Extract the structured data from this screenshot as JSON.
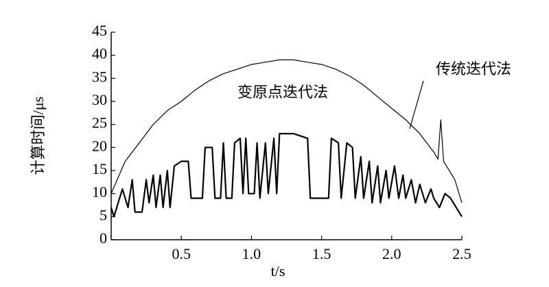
{
  "chart_data": {
    "type": "line",
    "xlabel": "t/s",
    "ylabel": "计算时间/μs",
    "xlim": [
      0,
      2.5
    ],
    "ylim": [
      0,
      45
    ],
    "xticks": [
      0.5,
      {
        "value": 1,
        "label": "1.0"
      },
      1.5,
      {
        "value": 2,
        "label": "2.0"
      },
      2.5
    ],
    "yticks": [
      0,
      5,
      10,
      15,
      20,
      25,
      30,
      35,
      40,
      45
    ],
    "series": [
      {
        "name": "传统迭代法",
        "color": "#000000",
        "width": 1.2,
        "x": [
          0,
          0.1,
          0.2,
          0.3,
          0.4,
          0.5,
          0.6,
          0.7,
          0.8,
          0.9,
          1.0,
          1.1,
          1.2,
          1.3,
          1.4,
          1.5,
          1.6,
          1.7,
          1.8,
          1.9,
          2.0,
          2.1,
          2.2,
          2.3,
          2.33,
          2.35,
          2.37,
          2.4,
          2.45,
          2.5
        ],
        "values": [
          10,
          17,
          21,
          25,
          28,
          30,
          32.5,
          34.5,
          36,
          37,
          38,
          38.5,
          39,
          39,
          38.5,
          38,
          37,
          35.5,
          33.5,
          31,
          28.5,
          26,
          23,
          19,
          17.5,
          26,
          17,
          15.5,
          13,
          8
        ]
      },
      {
        "name": "变原点迭代法",
        "color": "#000000",
        "width": 2.2,
        "x": [
          0,
          0.02,
          0.05,
          0.08,
          0.1,
          0.12,
          0.15,
          0.17,
          0.22,
          0.25,
          0.27,
          0.3,
          0.32,
          0.35,
          0.37,
          0.4,
          0.42,
          0.45,
          0.5,
          0.55,
          0.57,
          0.65,
          0.67,
          0.72,
          0.74,
          0.78,
          0.8,
          0.82,
          0.86,
          0.88,
          0.92,
          0.94,
          0.96,
          0.98,
          1.02,
          1.04,
          1.06,
          1.1,
          1.12,
          1.16,
          1.18,
          1.2,
          1.3,
          1.4,
          1.42,
          1.5,
          1.55,
          1.57,
          1.62,
          1.64,
          1.68,
          1.72,
          1.74,
          1.78,
          1.8,
          1.84,
          1.86,
          1.9,
          1.92,
          1.96,
          1.98,
          2.02,
          2.05,
          2.08,
          2.1,
          2.14,
          2.17,
          2.2,
          2.24,
          2.28,
          2.3,
          2.34,
          2.38,
          2.42,
          2.46,
          2.5
        ],
        "values": [
          7,
          5,
          8,
          11,
          9,
          7,
          13,
          6,
          6,
          13,
          8,
          14,
          7,
          14,
          7,
          15,
          7,
          16,
          17,
          17,
          9,
          9,
          20,
          20,
          9,
          9,
          21,
          9,
          9,
          21,
          22,
          10,
          22,
          10,
          10,
          21,
          9,
          21,
          10,
          22,
          10,
          23,
          23,
          22,
          9,
          9,
          9,
          22,
          21,
          9,
          21,
          20,
          9,
          18,
          9,
          17,
          8,
          16,
          8,
          15,
          9,
          16,
          9,
          14,
          9,
          13,
          8,
          12,
          8,
          11,
          9,
          7,
          10,
          9,
          7,
          5
        ]
      }
    ]
  }
}
